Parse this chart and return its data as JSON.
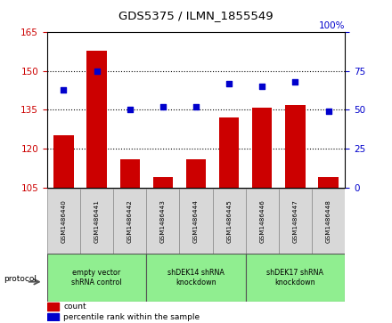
{
  "title": "GDS5375 / ILMN_1855549",
  "samples": [
    "GSM1486440",
    "GSM1486441",
    "GSM1486442",
    "GSM1486443",
    "GSM1486444",
    "GSM1486445",
    "GSM1486446",
    "GSM1486447",
    "GSM1486448"
  ],
  "counts": [
    125,
    158,
    116,
    109,
    116,
    132,
    136,
    137,
    109
  ],
  "percentile_ranks": [
    63,
    75,
    50,
    52,
    52,
    67,
    65,
    68,
    49
  ],
  "ylim_left": [
    105,
    165
  ],
  "ylim_right": [
    0,
    100
  ],
  "yticks_left": [
    105,
    120,
    135,
    150,
    165
  ],
  "yticks_right": [
    0,
    25,
    50,
    75,
    100
  ],
  "bar_color": "#cc0000",
  "dot_color": "#0000cc",
  "tick_color_left": "#cc0000",
  "tick_color_right": "#0000cc",
  "group_boundaries": [
    [
      0,
      2,
      "empty vector\nshRNA control"
    ],
    [
      3,
      5,
      "shDEK14 shRNA\nknockdown"
    ],
    [
      6,
      8,
      "shDEK17 shRNA\nknockdown"
    ]
  ],
  "group_color": "#90ee90",
  "sample_box_color": "#d8d8d8",
  "bar_width": 0.6
}
